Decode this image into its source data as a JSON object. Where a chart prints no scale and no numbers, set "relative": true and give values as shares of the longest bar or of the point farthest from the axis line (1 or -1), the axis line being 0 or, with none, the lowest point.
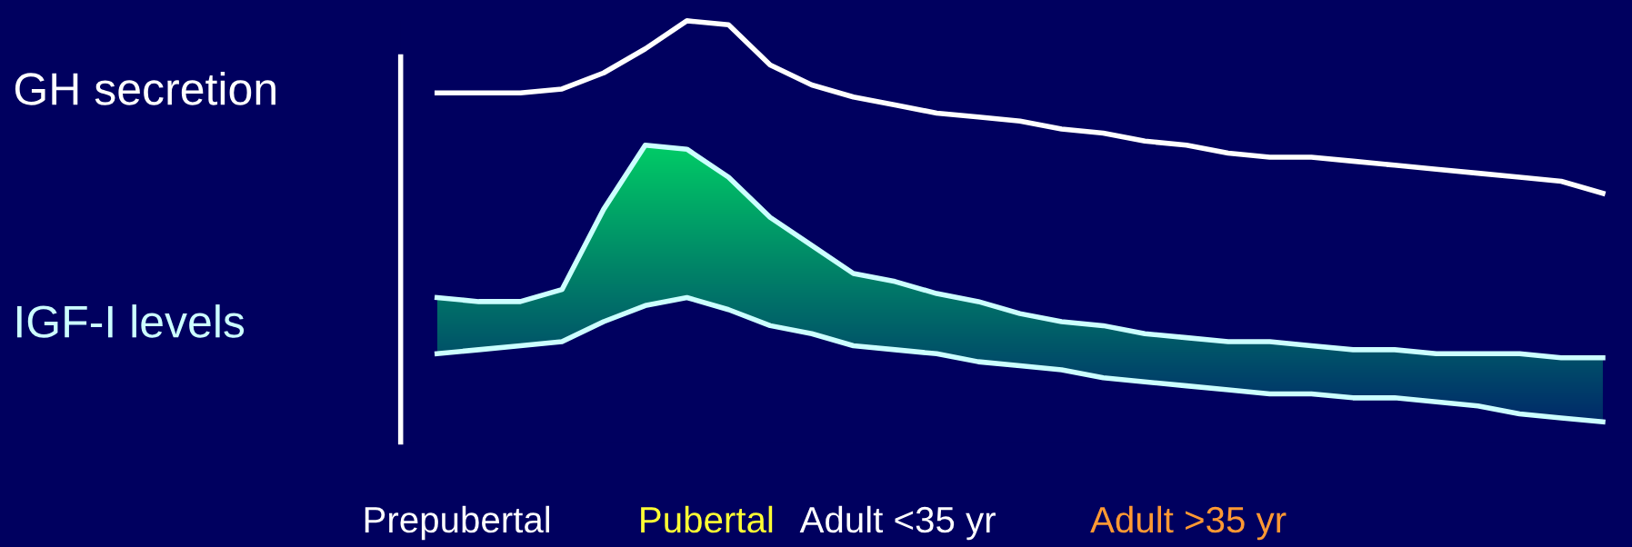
{
  "chart_data": {
    "type": "line",
    "relative": true,
    "categories": [
      null,
      null,
      null,
      null,
      null,
      null,
      null,
      null,
      null,
      null,
      null,
      null,
      null,
      null,
      null,
      null,
      null,
      null,
      null,
      null,
      null,
      null,
      null,
      null,
      null,
      null,
      null,
      null,
      null
    ],
    "series": [
      {
        "name": "GH secretion",
        "color": "#ffffff",
        "values": [
          0.82,
          0.82,
          0.82,
          0.83,
          0.87,
          0.93,
          1.0,
          0.99,
          0.89,
          0.84,
          0.81,
          0.79,
          0.77,
          0.76,
          0.75,
          0.73,
          0.72,
          0.7,
          0.69,
          0.67,
          0.66,
          0.66,
          0.65,
          0.64,
          0.63,
          0.62,
          0.61,
          0.6,
          0.57
        ]
      },
      {
        "name": "IGF-I levels",
        "color": "#ccffff",
        "values": [
          0.31,
          0.3,
          0.3,
          0.33,
          0.53,
          0.69,
          0.68,
          0.61,
          0.51,
          0.44,
          0.37,
          0.35,
          0.32,
          0.3,
          0.27,
          0.25,
          0.24,
          0.22,
          0.21,
          0.2,
          0.2,
          0.19,
          0.18,
          0.18,
          0.17,
          0.17,
          0.17,
          0.16,
          0.16
        ]
      },
      {
        "color": "#ccffff",
        "values": [
          0.17,
          0.18,
          0.19,
          0.2,
          0.25,
          0.29,
          0.31,
          0.28,
          0.24,
          0.22,
          0.19,
          0.18,
          0.17,
          0.15,
          0.14,
          0.13,
          0.11,
          0.1,
          0.09,
          0.08,
          0.07,
          0.07,
          0.06,
          0.06,
          0.05,
          0.04,
          0.02,
          0.01,
          0.0
        ]
      }
    ],
    "annotations": [
      "Prepubertal",
      "Pubertal",
      "Adult <35 yr",
      "Adult >35 yr"
    ],
    "legend": false,
    "marker": "none",
    "line_style": "solid"
  }
}
